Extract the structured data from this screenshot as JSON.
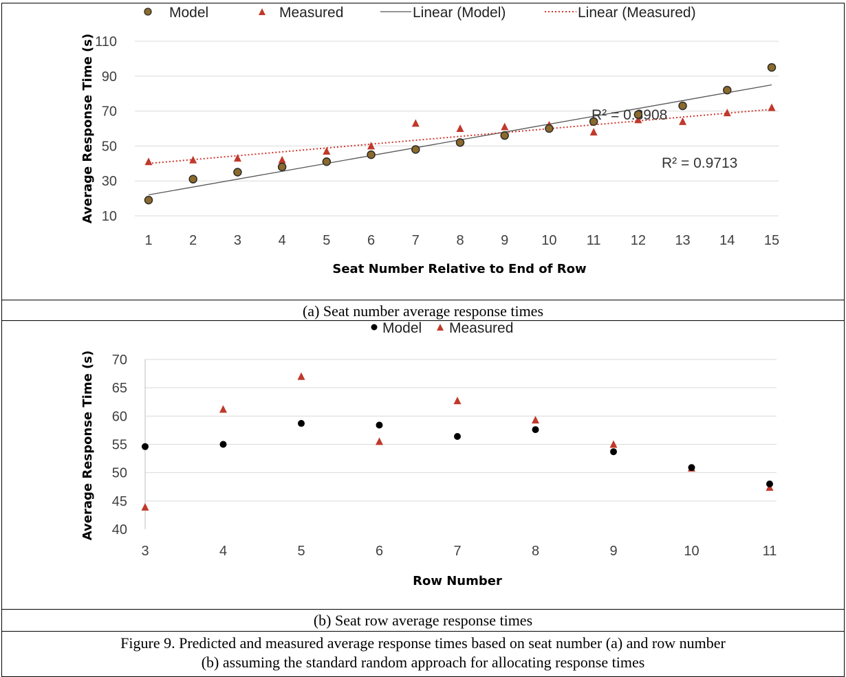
{
  "captions": {
    "a": "(a)  Seat number average response times",
    "b": "(b)  Seat row average response times",
    "figure_line1": "Figure 9. Predicted and measured average response times based on seat number (a) and row number",
    "figure_line2": "(b) assuming the standard random approach for allocating response times"
  },
  "colors": {
    "model_a": "#8B6A2B",
    "measured": "#C0392B",
    "model_b": "#000000",
    "linear_model": "#555555",
    "linear_measured": "#D0342C"
  },
  "chart_data": [
    {
      "type": "scatter",
      "xlabel": "Seat Number Relative to End of Row",
      "ylabel": "Average Response Time (s)",
      "xlim": [
        1,
        15
      ],
      "ylim": [
        10,
        110
      ],
      "xticks": [
        1,
        2,
        3,
        4,
        5,
        6,
        7,
        8,
        9,
        10,
        11,
        12,
        13,
        14,
        15
      ],
      "yticks": [
        10,
        30,
        50,
        70,
        90,
        110
      ],
      "grid": true,
      "legend_position": "top",
      "legend": [
        "Model",
        "Measured",
        "Linear (Model)",
        "Linear (Measured)"
      ],
      "series": [
        {
          "name": "Model",
          "marker": "circle",
          "x": [
            1,
            2,
            3,
            4,
            5,
            6,
            7,
            8,
            9,
            10,
            11,
            12,
            13,
            14,
            15
          ],
          "y": [
            19,
            31,
            35,
            38,
            41,
            45,
            48,
            52,
            56,
            60,
            64,
            68,
            73,
            82,
            95
          ]
        },
        {
          "name": "Measured",
          "marker": "triangle",
          "x": [
            1,
            2,
            3,
            4,
            5,
            6,
            7,
            8,
            9,
            10,
            11,
            12,
            13,
            14,
            15
          ],
          "y": [
            41,
            42,
            43,
            42,
            47,
            50,
            63,
            60,
            61,
            62,
            58,
            65,
            64,
            69,
            72
          ]
        }
      ],
      "trendlines": [
        {
          "name": "Linear (Model)",
          "x": [
            1,
            15
          ],
          "y": [
            22,
            85
          ],
          "style": "solid",
          "r2_label": "R² = 0.8908"
        },
        {
          "name": "Linear (Measured)",
          "x": [
            1,
            15
          ],
          "y": [
            40,
            71
          ],
          "style": "dotted",
          "r2_label": "R² = 0.9713"
        }
      ]
    },
    {
      "type": "scatter",
      "xlabel": "Row Number",
      "ylabel": "Average Response Time (s)",
      "xlim": [
        3,
        11
      ],
      "ylim": [
        40,
        70
      ],
      "xticks": [
        "3",
        "4",
        "5",
        "6",
        "7",
        "8",
        "9",
        "10",
        "11"
      ],
      "yticks": [
        40,
        45,
        50,
        55,
        60,
        65,
        70
      ],
      "grid": true,
      "legend_position": "top",
      "legend": [
        "Model",
        "Measured"
      ],
      "series": [
        {
          "name": "Model",
          "marker": "circle",
          "x": [
            3,
            4,
            5,
            6,
            7,
            8,
            9,
            10,
            11
          ],
          "y": [
            54.6,
            55.0,
            58.7,
            58.4,
            56.4,
            57.6,
            53.7,
            50.9,
            48.0
          ]
        },
        {
          "name": "Measured",
          "marker": "triangle",
          "x": [
            3,
            4,
            5,
            6,
            7,
            8,
            9,
            10,
            11
          ],
          "y": [
            43.9,
            61.2,
            67.0,
            55.5,
            62.7,
            59.3,
            55.0,
            50.8,
            47.4
          ]
        }
      ]
    }
  ]
}
